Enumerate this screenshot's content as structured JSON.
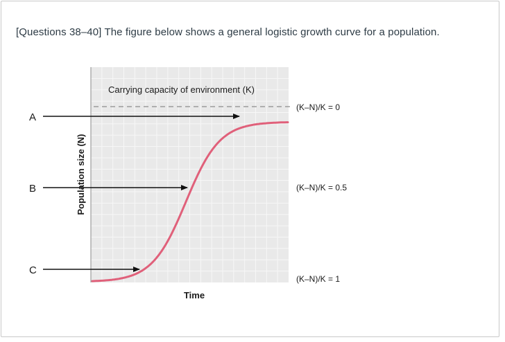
{
  "question": {
    "text": "[Questions 38–40] The figure below shows a general logistic growth curve for a population."
  },
  "figure": {
    "carrying_capacity_label": "Carrying capacity of environment (K)",
    "y_axis_label": "Population size (N)",
    "x_axis_label": "Time",
    "arrow_labels": [
      "A",
      "B",
      "C"
    ],
    "ratio_labels": [
      "(K–N)/K = 0",
      "(K–N)/K = 0.5",
      "(K–N)/K = 1"
    ],
    "colors": {
      "curve": "#e0607a",
      "plot_background": "#e9e9e9",
      "grid": "#f7f7f7"
    }
  }
}
